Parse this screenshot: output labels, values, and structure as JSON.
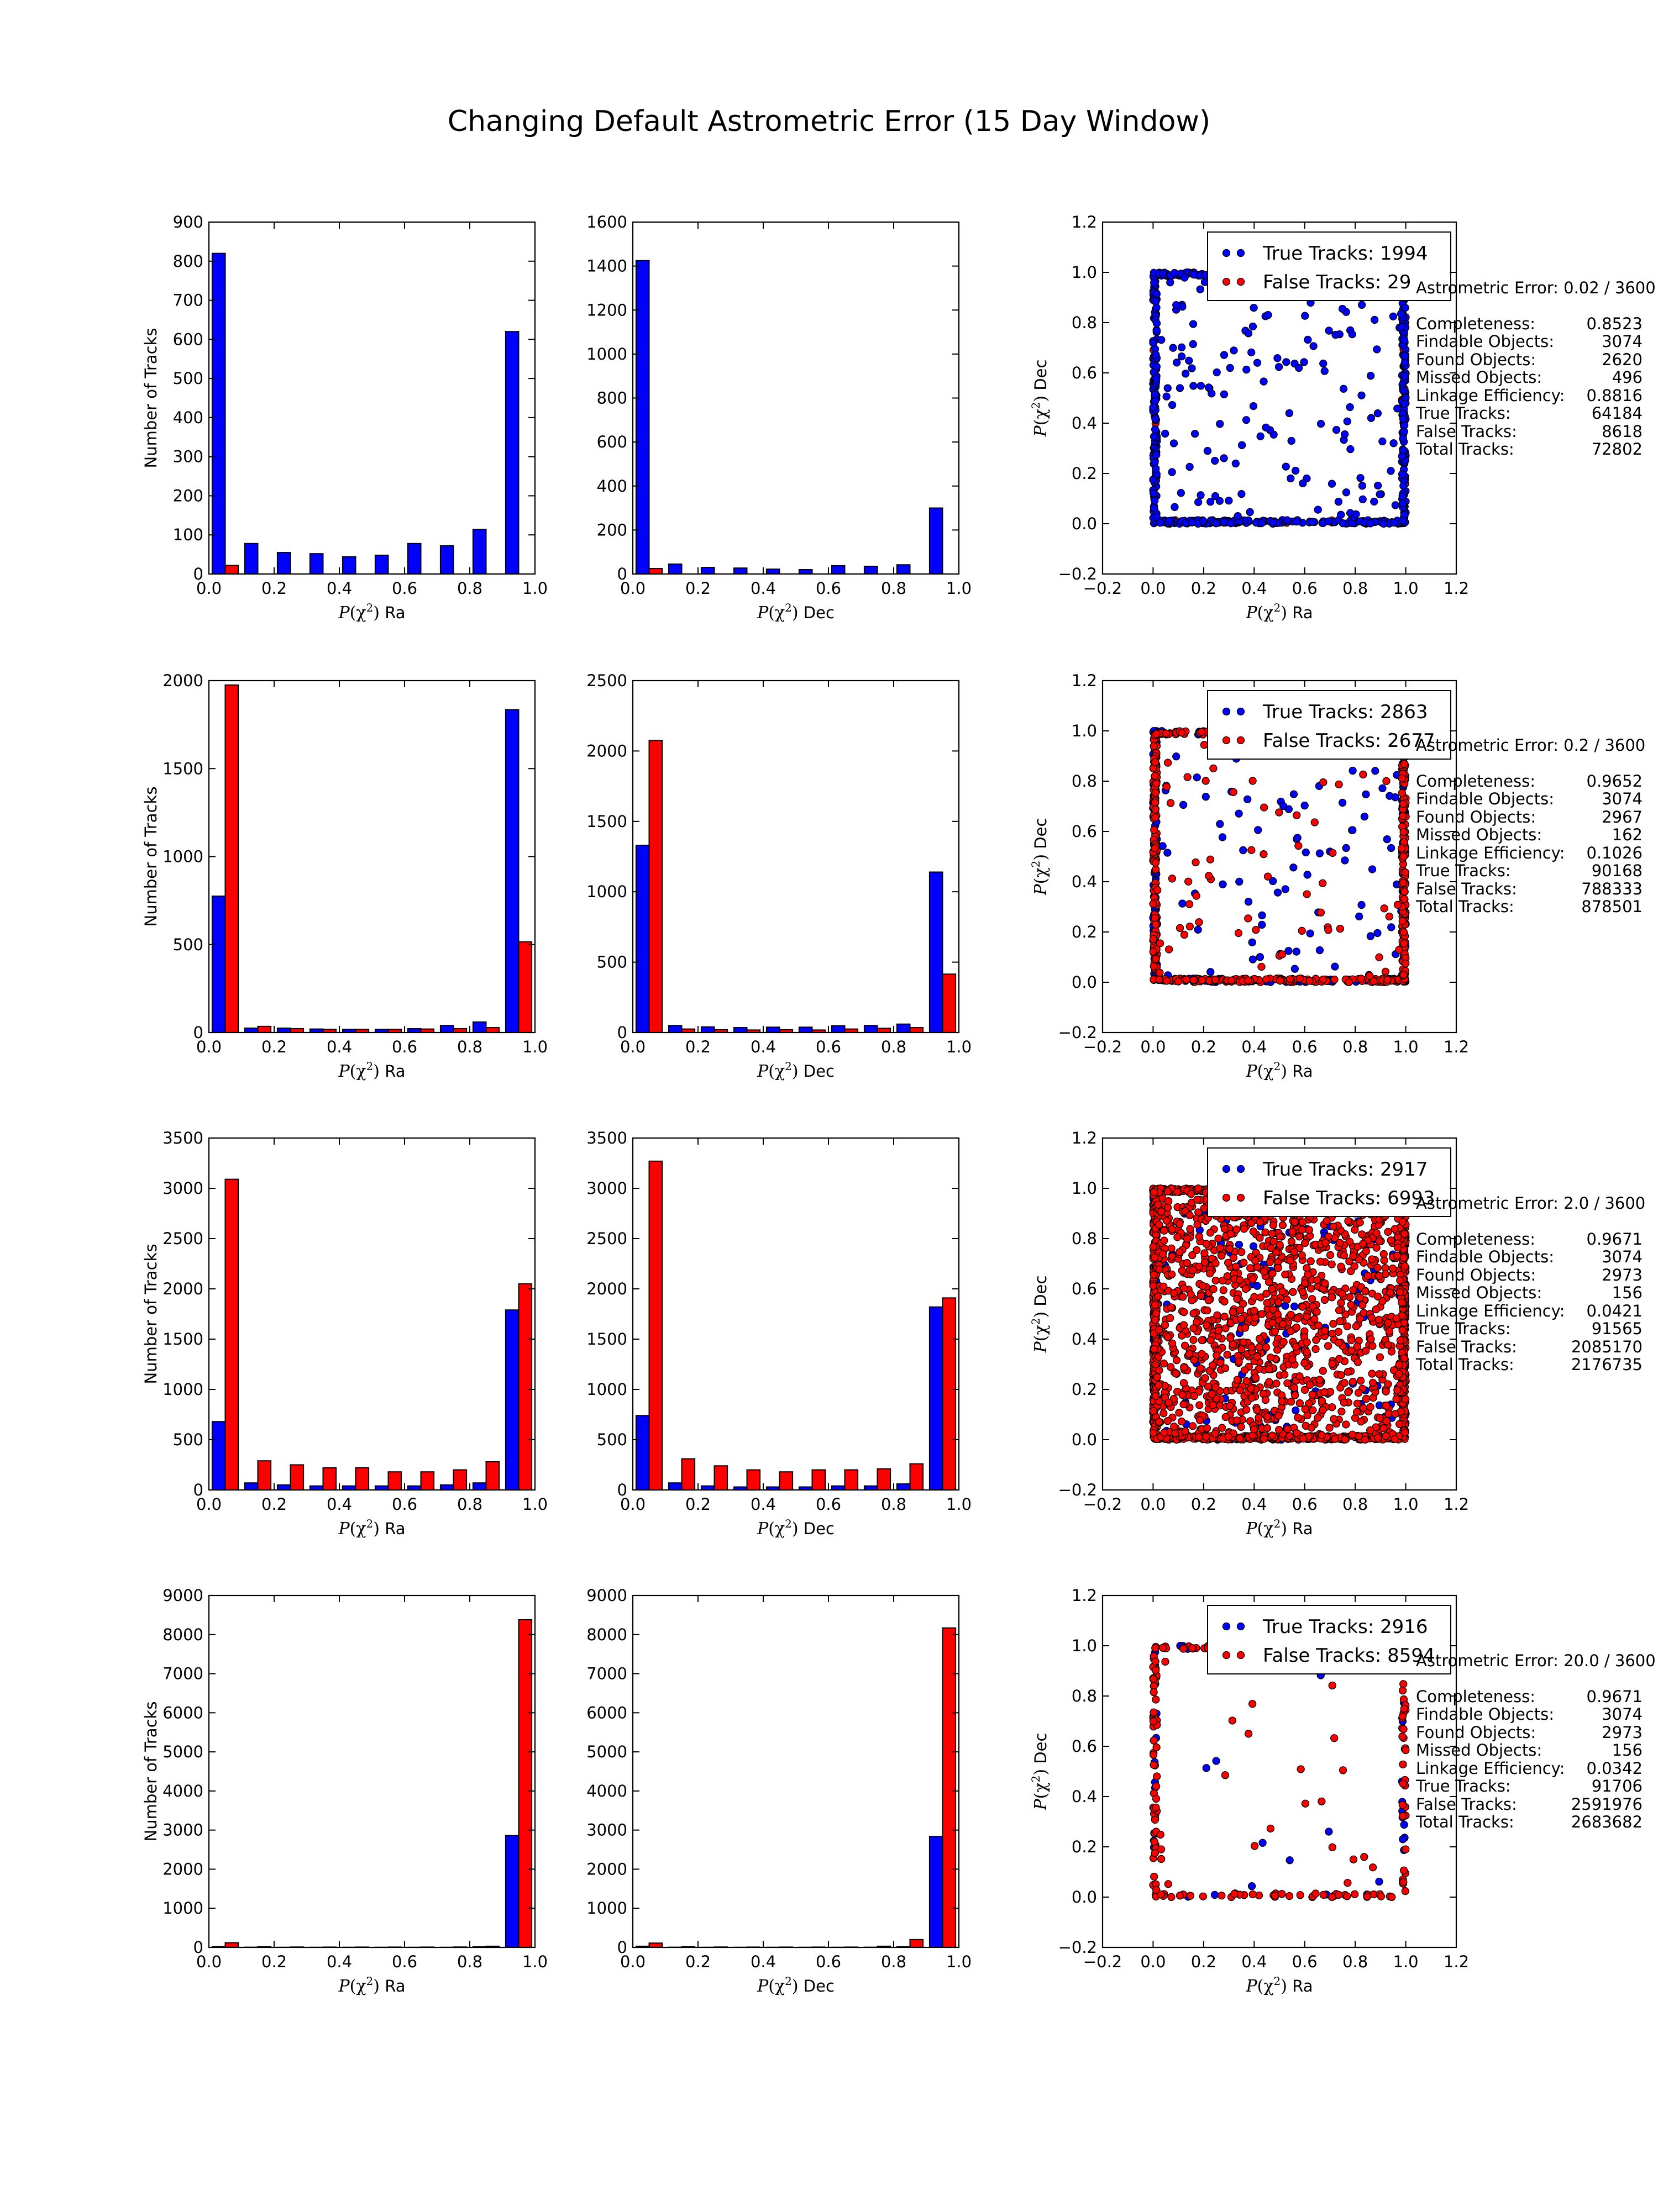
{
  "figure": {
    "title": "Changing Default Astrometric Error (15 Day Window)",
    "colors": {
      "true": "#0000ff",
      "false": "#ff0000",
      "scatter_true": "#0000ff",
      "scatter_false": "#ff0000"
    },
    "hist_ylabel": "Number of Tracks",
    "hist_xlabel_ra": "P(χ²) Ra",
    "hist_xlabel_dec": "P(χ²) Dec",
    "scatter_xlabel": "P(χ²) Ra",
    "scatter_ylabel": "P(χ²) Dec"
  },
  "chart_data": [
    {
      "type": "bar",
      "row": 0,
      "panel": "ra",
      "bins": [
        0.0,
        0.1,
        0.2,
        0.3,
        0.4,
        0.5,
        0.6,
        0.7,
        0.8,
        0.9
      ],
      "series": [
        {
          "values": [
            820,
            78,
            55,
            52,
            44,
            48,
            78,
            72,
            114,
            620
          ]
        },
        {
          "values": [
            22,
            0,
            0,
            0,
            0,
            0,
            0,
            0,
            0,
            0
          ]
        }
      ],
      "ylim": [
        0,
        900
      ],
      "yticks": [
        "0",
        "100",
        "200",
        "300",
        "400",
        "500",
        "600",
        "700",
        "800",
        "900"
      ],
      "xlim": [
        0,
        1
      ],
      "xticks": [
        "0.0",
        "0.2",
        "0.4",
        "0.6",
        "0.8",
        "1.0"
      ],
      "xlabel": "P(χ²) Ra",
      "ylabel": "Number of Tracks"
    },
    {
      "type": "bar",
      "row": 0,
      "panel": "dec",
      "bins": [
        0.0,
        0.1,
        0.2,
        0.3,
        0.4,
        0.5,
        0.6,
        0.7,
        0.8,
        0.9
      ],
      "series": [
        {
          "values": [
            1425,
            45,
            30,
            27,
            22,
            20,
            38,
            35,
            42,
            300
          ]
        },
        {
          "values": [
            25,
            0,
            0,
            0,
            0,
            0,
            0,
            0,
            0,
            0
          ]
        }
      ],
      "ylim": [
        0,
        1600
      ],
      "yticks": [
        "0",
        "200",
        "400",
        "600",
        "800",
        "1000",
        "1200",
        "1400",
        "1600"
      ],
      "xlim": [
        0,
        1
      ],
      "xticks": [
        "0.0",
        "0.2",
        "0.4",
        "0.6",
        "0.8",
        "1.0"
      ],
      "xlabel": "P(χ²) Dec"
    },
    {
      "type": "scatter",
      "row": 0,
      "xlim": [
        -0.2,
        1.2
      ],
      "ylim": [
        -0.2,
        1.2
      ],
      "xticks": [
        "−0.2",
        "0.0",
        "0.2",
        "0.4",
        "0.6",
        "0.8",
        "1.0",
        "1.2"
      ],
      "yticks": [
        "−0.2",
        "0.0",
        "0.2",
        "0.4",
        "0.6",
        "0.8",
        "1.0",
        "1.2"
      ],
      "xlabel": "P(χ²) Ra",
      "ylabel": "P(χ²) Dec",
      "legend": [
        "True Tracks: 1994",
        "False Tracks: 29"
      ],
      "true_interior": 160,
      "false_interior": 0,
      "true_edge": 600,
      "false_edge": 60
    },
    {
      "type": "bar",
      "row": 1,
      "panel": "ra",
      "bins": [
        0.0,
        0.1,
        0.2,
        0.3,
        0.4,
        0.5,
        0.6,
        0.7,
        0.8,
        0.9
      ],
      "series": [
        {
          "values": [
            775,
            25,
            25,
            20,
            18,
            18,
            22,
            40,
            60,
            1835
          ]
        },
        {
          "values": [
            1975,
            35,
            22,
            18,
            18,
            18,
            20,
            22,
            28,
            515
          ]
        }
      ],
      "ylim": [
        0,
        2000
      ],
      "yticks": [
        "0",
        "500",
        "1000",
        "1500",
        "2000"
      ],
      "xlim": [
        0,
        1
      ],
      "xticks": [
        "0.0",
        "0.2",
        "0.4",
        "0.6",
        "0.8",
        "1.0"
      ],
      "xlabel": "P(χ²) Ra",
      "ylabel": "Number of Tracks"
    },
    {
      "type": "bar",
      "row": 1,
      "panel": "dec",
      "bins": [
        0.0,
        0.1,
        0.2,
        0.3,
        0.4,
        0.5,
        0.6,
        0.7,
        0.8,
        0.9
      ],
      "series": [
        {
          "values": [
            1330,
            50,
            40,
            35,
            38,
            38,
            48,
            50,
            60,
            1140
          ]
        },
        {
          "values": [
            2075,
            25,
            20,
            18,
            20,
            18,
            25,
            30,
            35,
            415
          ]
        }
      ],
      "ylim": [
        0,
        2500
      ],
      "yticks": [
        "0",
        "500",
        "1000",
        "1500",
        "2000",
        "2500"
      ],
      "xlim": [
        0,
        1
      ],
      "xticks": [
        "0.0",
        "0.2",
        "0.4",
        "0.6",
        "0.8",
        "1.0"
      ],
      "xlabel": "P(χ²) Dec"
    },
    {
      "type": "scatter",
      "row": 1,
      "xlim": [
        -0.2,
        1.2
      ],
      "ylim": [
        -0.2,
        1.2
      ],
      "xticks": [
        "−0.2",
        "0.0",
        "0.2",
        "0.4",
        "0.6",
        "0.8",
        "1.0",
        "1.2"
      ],
      "yticks": [
        "−0.2",
        "0.0",
        "0.2",
        "0.4",
        "0.6",
        "0.8",
        "1.0",
        "1.2"
      ],
      "xlabel": "P(χ²) Ra",
      "ylabel": "P(χ²) Dec",
      "legend": [
        "True Tracks: 2863",
        "False Tracks: 2677"
      ],
      "true_interior": 90,
      "false_interior": 70,
      "true_edge": 300,
      "false_edge": 500
    },
    {
      "type": "bar",
      "row": 2,
      "panel": "ra",
      "bins": [
        0.0,
        0.1,
        0.2,
        0.3,
        0.4,
        0.5,
        0.6,
        0.7,
        0.8,
        0.9
      ],
      "series": [
        {
          "values": [
            680,
            70,
            50,
            40,
            40,
            40,
            40,
            50,
            70,
            1790
          ]
        },
        {
          "values": [
            3090,
            290,
            250,
            220,
            220,
            180,
            180,
            200,
            280,
            2050
          ]
        }
      ],
      "ylim": [
        0,
        3500
      ],
      "yticks": [
        "0",
        "500",
        "1000",
        "1500",
        "2000",
        "2500",
        "3000",
        "3500"
      ],
      "xlim": [
        0,
        1
      ],
      "xticks": [
        "0.0",
        "0.2",
        "0.4",
        "0.6",
        "0.8",
        "1.0"
      ],
      "xlabel": "P(χ²) Ra",
      "ylabel": "Number of Tracks"
    },
    {
      "type": "bar",
      "row": 2,
      "panel": "dec",
      "bins": [
        0.0,
        0.1,
        0.2,
        0.3,
        0.4,
        0.5,
        0.6,
        0.7,
        0.8,
        0.9
      ],
      "series": [
        {
          "values": [
            740,
            70,
            40,
            30,
            30,
            30,
            40,
            40,
            60,
            1820
          ]
        },
        {
          "values": [
            3270,
            310,
            240,
            200,
            180,
            200,
            200,
            210,
            260,
            1910
          ]
        }
      ],
      "ylim": [
        0,
        3500
      ],
      "yticks": [
        "0",
        "500",
        "1000",
        "1500",
        "2000",
        "2500",
        "3000",
        "3500"
      ],
      "xlim": [
        0,
        1
      ],
      "xticks": [
        "0.0",
        "0.2",
        "0.4",
        "0.6",
        "0.8",
        "1.0"
      ],
      "xlabel": "P(χ²) Dec"
    },
    {
      "type": "scatter",
      "row": 2,
      "xlim": [
        -0.2,
        1.2
      ],
      "ylim": [
        -0.2,
        1.2
      ],
      "xticks": [
        "−0.2",
        "0.0",
        "0.2",
        "0.4",
        "0.6",
        "0.8",
        "1.0",
        "1.2"
      ],
      "yticks": [
        "−0.2",
        "0.0",
        "0.2",
        "0.4",
        "0.6",
        "0.8",
        "1.0",
        "1.2"
      ],
      "xlabel": "P(χ²) Ra",
      "ylabel": "P(χ²) Dec",
      "legend": [
        "True Tracks: 2917",
        "False Tracks: 6993"
      ],
      "true_interior": 110,
      "false_interior": 1300,
      "true_edge": 200,
      "false_edge": 900
    },
    {
      "type": "bar",
      "row": 3,
      "panel": "ra",
      "bins": [
        0.0,
        0.1,
        0.2,
        0.3,
        0.4,
        0.5,
        0.6,
        0.7,
        0.8,
        0.9
      ],
      "series": [
        {
          "values": [
            20,
            5,
            3,
            3,
            3,
            3,
            3,
            3,
            15,
            2860
          ]
        },
        {
          "values": [
            120,
            15,
            10,
            8,
            8,
            8,
            8,
            10,
            30,
            8380
          ]
        }
      ],
      "ylim": [
        0,
        9000
      ],
      "yticks": [
        "0",
        "1000",
        "2000",
        "3000",
        "4000",
        "5000",
        "6000",
        "7000",
        "8000",
        "9000"
      ],
      "xlim": [
        0,
        1
      ],
      "xticks": [
        "0.0",
        "0.2",
        "0.4",
        "0.6",
        "0.8",
        "1.0"
      ],
      "xlabel": "P(χ²) Ra",
      "ylabel": "Number of Tracks"
    },
    {
      "type": "bar",
      "row": 3,
      "panel": "dec",
      "bins": [
        0.0,
        0.1,
        0.2,
        0.3,
        0.4,
        0.5,
        0.6,
        0.7,
        0.8,
        0.9
      ],
      "series": [
        {
          "values": [
            30,
            5,
            3,
            3,
            3,
            3,
            3,
            5,
            15,
            2840
          ]
        },
        {
          "values": [
            110,
            15,
            10,
            8,
            8,
            8,
            8,
            30,
            200,
            8170
          ]
        }
      ],
      "ylim": [
        0,
        9000
      ],
      "yticks": [
        "0",
        "1000",
        "2000",
        "3000",
        "4000",
        "5000",
        "6000",
        "7000",
        "8000",
        "9000"
      ],
      "xlim": [
        0,
        1
      ],
      "xticks": [
        "0.0",
        "0.2",
        "0.4",
        "0.6",
        "0.8",
        "1.0"
      ],
      "xlabel": "P(χ²) Dec"
    },
    {
      "type": "scatter",
      "row": 3,
      "xlim": [
        -0.2,
        1.2
      ],
      "ylim": [
        -0.2,
        1.2
      ],
      "xticks": [
        "−0.2",
        "0.0",
        "0.2",
        "0.4",
        "0.6",
        "0.8",
        "1.0",
        "1.2"
      ],
      "yticks": [
        "−0.2",
        "0.0",
        "0.2",
        "0.4",
        "0.6",
        "0.8",
        "1.0",
        "1.2"
      ],
      "xlabel": "P(χ²) Ra",
      "ylabel": "P(χ²) Dec",
      "legend": [
        "True Tracks: 2916",
        "False Tracks: 8594"
      ],
      "true_interior": 8,
      "false_interior": 25,
      "true_edge": 40,
      "false_edge": 180
    }
  ],
  "info_panels": [
    {
      "header": "Astrometric Error: 0.02 / 3600",
      "rows": [
        [
          "Completeness:",
          "0.8523"
        ],
        [
          "Findable Objects:",
          "3074"
        ],
        [
          "Found Objects:",
          "2620"
        ],
        [
          "Missed Objects:",
          "496"
        ],
        [
          "Linkage Efficiency:",
          "0.8816"
        ],
        [
          "True Tracks:",
          "64184"
        ],
        [
          "False Tracks:",
          "8618"
        ],
        [
          "Total Tracks:",
          "72802"
        ]
      ]
    },
    {
      "header": "Astrometric Error: 0.2 / 3600",
      "rows": [
        [
          "Completeness:",
          "0.9652"
        ],
        [
          "Findable Objects:",
          "3074"
        ],
        [
          "Found Objects:",
          "2967"
        ],
        [
          "Missed Objects:",
          "162"
        ],
        [
          "Linkage Efficiency:",
          "0.1026"
        ],
        [
          "True Tracks:",
          "90168"
        ],
        [
          "False Tracks:",
          "788333"
        ],
        [
          "Total Tracks:",
          "878501"
        ]
      ]
    },
    {
      "header": "Astrometric Error: 2.0 / 3600",
      "rows": [
        [
          "Completeness:",
          "0.9671"
        ],
        [
          "Findable Objects:",
          "3074"
        ],
        [
          "Found Objects:",
          "2973"
        ],
        [
          "Missed Objects:",
          "156"
        ],
        [
          "Linkage Efficiency:",
          "0.0421"
        ],
        [
          "True Tracks:",
          "91565"
        ],
        [
          "False Tracks:",
          "2085170"
        ],
        [
          "Total Tracks:",
          "2176735"
        ]
      ]
    },
    {
      "header": "Astrometric Error: 20.0 / 3600",
      "rows": [
        [
          "Completeness:",
          "0.9671"
        ],
        [
          "Findable Objects:",
          "3074"
        ],
        [
          "Found Objects:",
          "2973"
        ],
        [
          "Missed Objects:",
          "156"
        ],
        [
          "Linkage Efficiency:",
          "0.0342"
        ],
        [
          "True Tracks:",
          "91706"
        ],
        [
          "False Tracks:",
          "2591976"
        ],
        [
          "Total Tracks:",
          "2683682"
        ]
      ]
    }
  ]
}
